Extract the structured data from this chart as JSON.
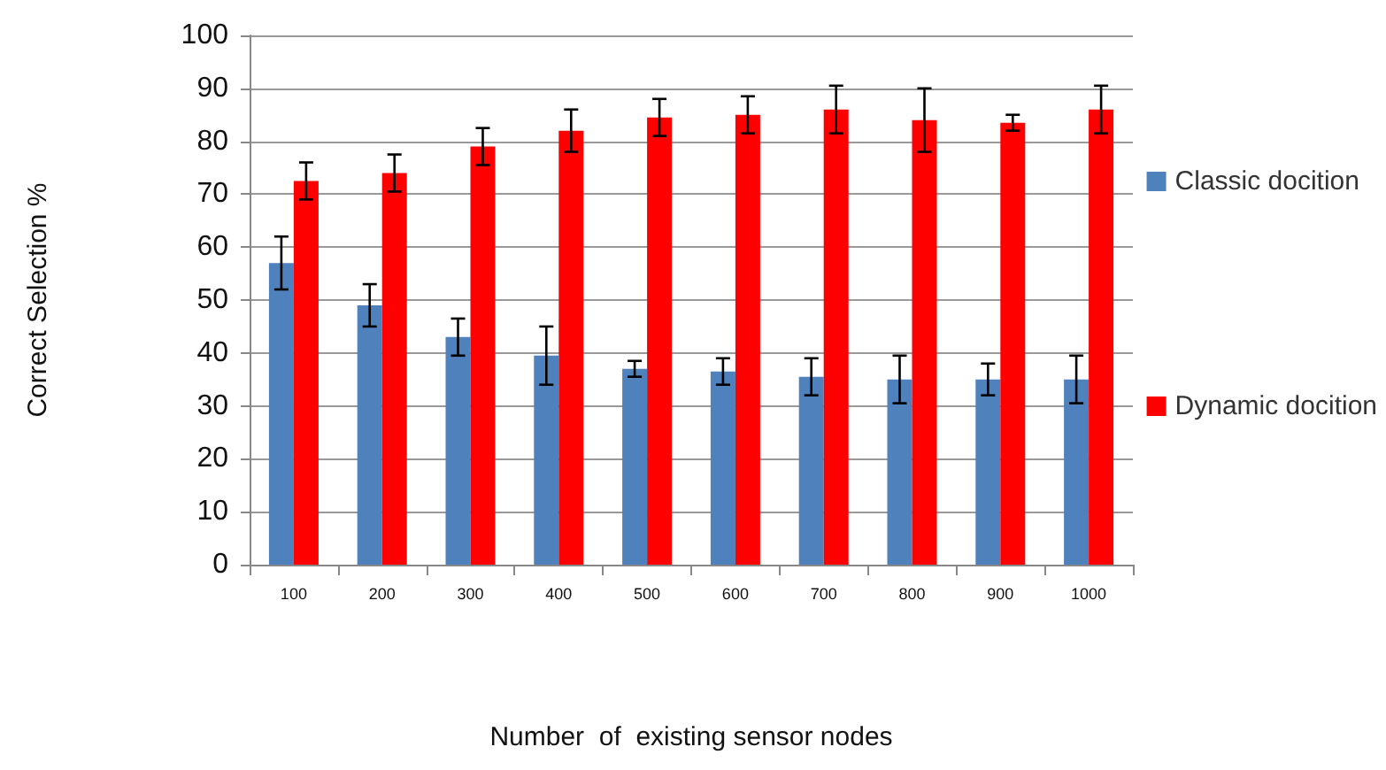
{
  "chart_data": {
    "type": "bar",
    "xlabel": "Number  of  existing sensor nodes",
    "ylabel": "Correct Selection %",
    "categories": [
      "100",
      "200",
      "300",
      "400",
      "500",
      "600",
      "700",
      "800",
      "900",
      "1000"
    ],
    "series": [
      {
        "name": "Classic docition",
        "color": "#4f81bd",
        "values": [
          57,
          49,
          43,
          39.5,
          37,
          36.5,
          35.5,
          35,
          35,
          35
        ],
        "errors": [
          5,
          4,
          3.5,
          5.5,
          1.5,
          2.5,
          3.5,
          4.5,
          3,
          4.5
        ]
      },
      {
        "name": "Dynamic docition",
        "color": "#ff0000",
        "values": [
          72.5,
          74,
          79,
          82,
          84.5,
          85,
          86,
          84,
          83.5,
          86
        ],
        "errors": [
          3.5,
          3.5,
          3.5,
          4,
          3.5,
          3.5,
          4.5,
          6,
          1.5,
          4.5
        ]
      }
    ],
    "ylim": [
      0,
      100
    ],
    "yticks": [
      0,
      10,
      20,
      30,
      40,
      50,
      60,
      70,
      80,
      90,
      100
    ],
    "grid": "y",
    "legend": "right"
  }
}
